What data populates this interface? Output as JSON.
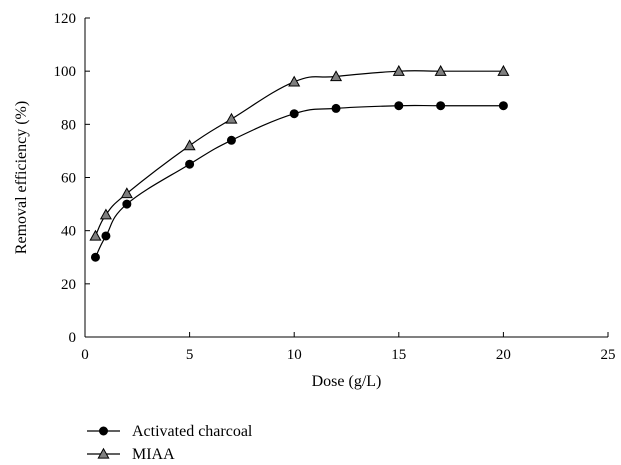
{
  "chart_data": {
    "type": "line",
    "xlabel": "Dose (g/L)",
    "ylabel": "Removal efficiency (%)",
    "xlim": [
      0,
      25
    ],
    "ylim": [
      0,
      120
    ],
    "xticks": [
      0,
      5,
      10,
      15,
      20,
      25
    ],
    "yticks": [
      0,
      20,
      40,
      60,
      80,
      100,
      120
    ],
    "grid": false,
    "legend_position": "bottom-left",
    "series": [
      {
        "name": "Activated charcoal",
        "marker": "circle",
        "color": "#000000",
        "x": [
          0.5,
          1,
          2,
          5,
          7,
          10,
          12,
          15,
          17,
          20
        ],
        "y": [
          30,
          38,
          50,
          65,
          74,
          84,
          86,
          87,
          87,
          87
        ]
      },
      {
        "name": "MIAA",
        "marker": "triangle",
        "color": "#000000",
        "marker_fill": "#7f7f7f",
        "x": [
          0.5,
          1,
          2,
          5,
          7,
          10,
          12,
          15,
          17,
          20
        ],
        "y": [
          38,
          46,
          54,
          72,
          82,
          96,
          98,
          100,
          100,
          100
        ]
      }
    ]
  }
}
